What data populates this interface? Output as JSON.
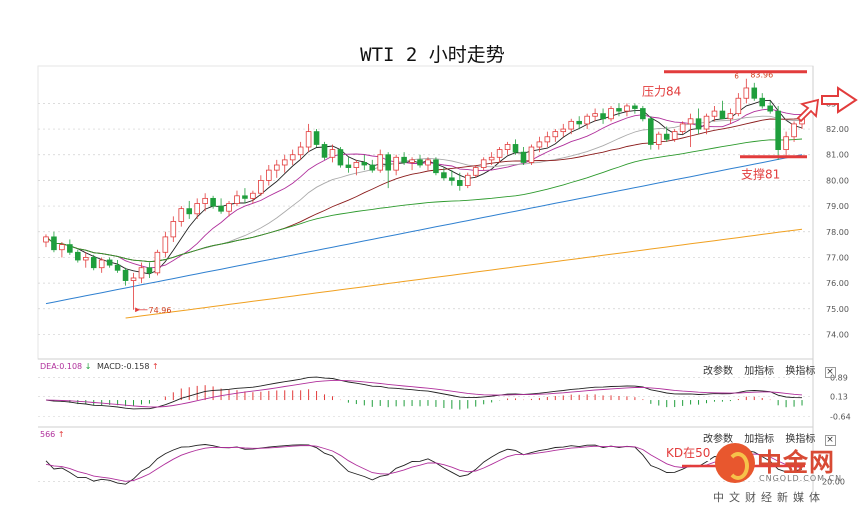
{
  "title": "WTI 2 小时走势",
  "chart_data": {
    "type": "candlestick",
    "title": "WTI 2 小时走势",
    "y_ticks": [
      "83.00",
      "82.00",
      "81.00",
      "80.00",
      "79.00",
      "78.00",
      "77.00",
      "76.00",
      "75.00",
      "74.00"
    ],
    "ylim": [
      73.2,
      84.3
    ],
    "candles": [
      [
        77.6,
        77.9,
        77.4,
        77.8
      ],
      [
        77.8,
        78.0,
        77.2,
        77.3
      ],
      [
        77.3,
        77.6,
        77.0,
        77.5
      ],
      [
        77.5,
        77.7,
        77.1,
        77.2
      ],
      [
        77.2,
        77.3,
        76.8,
        76.9
      ],
      [
        76.9,
        77.2,
        76.6,
        77.0
      ],
      [
        77.0,
        77.1,
        76.5,
        76.6
      ],
      [
        76.6,
        77.0,
        76.4,
        76.9
      ],
      [
        76.9,
        77.0,
        76.6,
        76.7
      ],
      [
        76.7,
        76.9,
        76.4,
        76.5
      ],
      [
        76.5,
        76.6,
        75.9,
        76.1
      ],
      [
        76.1,
        76.4,
        74.96,
        76.2
      ],
      [
        76.2,
        76.8,
        76.0,
        76.6
      ],
      [
        76.6,
        76.8,
        76.2,
        76.4
      ],
      [
        76.4,
        77.3,
        76.3,
        77.2
      ],
      [
        77.2,
        78.0,
        77.0,
        77.8
      ],
      [
        77.8,
        78.6,
        77.6,
        78.4
      ],
      [
        78.4,
        79.0,
        78.2,
        78.9
      ],
      [
        78.9,
        79.2,
        78.5,
        78.7
      ],
      [
        78.7,
        79.3,
        78.5,
        79.1
      ],
      [
        79.1,
        79.5,
        78.8,
        79.3
      ],
      [
        79.3,
        79.4,
        78.9,
        79.0
      ],
      [
        79.0,
        79.3,
        78.7,
        78.8
      ],
      [
        78.8,
        79.2,
        78.6,
        79.1
      ],
      [
        79.1,
        79.6,
        79.0,
        79.4
      ],
      [
        79.4,
        79.7,
        79.1,
        79.3
      ],
      [
        79.3,
        79.6,
        79.1,
        79.5
      ],
      [
        79.5,
        80.2,
        79.4,
        80.0
      ],
      [
        80.0,
        80.6,
        79.8,
        80.4
      ],
      [
        80.4,
        80.8,
        80.1,
        80.6
      ],
      [
        80.6,
        81.0,
        80.3,
        80.8
      ],
      [
        80.8,
        81.2,
        80.6,
        81.0
      ],
      [
        81.0,
        81.5,
        80.8,
        81.3
      ],
      [
        81.3,
        82.2,
        81.1,
        81.9
      ],
      [
        81.9,
        82.0,
        81.3,
        81.4
      ],
      [
        81.4,
        81.5,
        80.8,
        80.9
      ],
      [
        80.9,
        81.4,
        80.7,
        81.2
      ],
      [
        81.2,
        81.3,
        80.5,
        80.6
      ],
      [
        80.6,
        80.9,
        80.3,
        80.5
      ],
      [
        80.5,
        80.8,
        80.2,
        80.7
      ],
      [
        80.7,
        81.0,
        80.4,
        80.6
      ],
      [
        80.6,
        80.8,
        80.3,
        80.4
      ],
      [
        80.4,
        81.2,
        80.3,
        81.0
      ],
      [
        81.0,
        81.1,
        79.7,
        80.4
      ],
      [
        80.4,
        81.0,
        80.2,
        80.9
      ],
      [
        80.9,
        81.1,
        80.6,
        80.7
      ],
      [
        80.7,
        80.9,
        80.4,
        80.8
      ],
      [
        80.8,
        81.0,
        80.5,
        80.6
      ],
      [
        80.6,
        80.9,
        80.4,
        80.8
      ],
      [
        80.8,
        80.9,
        80.2,
        80.3
      ],
      [
        80.3,
        80.5,
        80.0,
        80.1
      ],
      [
        80.1,
        80.4,
        79.8,
        80.0
      ],
      [
        80.0,
        80.3,
        79.6,
        79.8
      ],
      [
        79.8,
        80.3,
        79.7,
        80.2
      ],
      [
        80.2,
        80.6,
        80.1,
        80.5
      ],
      [
        80.5,
        80.9,
        80.4,
        80.8
      ],
      [
        80.8,
        81.1,
        80.6,
        80.9
      ],
      [
        80.9,
        81.3,
        80.7,
        81.2
      ],
      [
        81.2,
        81.5,
        81.0,
        81.4
      ],
      [
        81.4,
        81.6,
        81.0,
        81.1
      ],
      [
        81.1,
        81.3,
        80.6,
        80.7
      ],
      [
        80.7,
        81.4,
        80.6,
        81.3
      ],
      [
        81.3,
        81.7,
        81.1,
        81.5
      ],
      [
        81.5,
        81.9,
        81.3,
        81.7
      ],
      [
        81.7,
        82.0,
        81.5,
        81.9
      ],
      [
        81.9,
        82.2,
        81.7,
        82.0
      ],
      [
        82.0,
        82.4,
        81.8,
        82.3
      ],
      [
        82.3,
        82.5,
        82.0,
        82.2
      ],
      [
        82.2,
        82.6,
        82.0,
        82.5
      ],
      [
        82.5,
        82.8,
        82.3,
        82.6
      ],
      [
        82.6,
        82.8,
        82.2,
        82.4
      ],
      [
        82.4,
        82.9,
        82.3,
        82.8
      ],
      [
        82.8,
        83.0,
        82.5,
        82.7
      ],
      [
        82.7,
        83.0,
        82.5,
        82.9
      ],
      [
        82.9,
        83.0,
        82.6,
        82.8
      ],
      [
        82.8,
        82.9,
        82.3,
        82.4
      ],
      [
        82.4,
        82.5,
        81.2,
        81.4
      ],
      [
        81.4,
        81.9,
        81.2,
        81.8
      ],
      [
        81.8,
        82.1,
        81.5,
        81.6
      ],
      [
        81.6,
        82.0,
        81.5,
        81.9
      ],
      [
        81.9,
        82.3,
        81.8,
        82.2
      ],
      [
        82.2,
        82.6,
        81.3,
        82.4
      ],
      [
        82.4,
        82.8,
        81.8,
        82.0
      ],
      [
        82.0,
        82.6,
        81.8,
        82.5
      ],
      [
        82.5,
        82.9,
        82.3,
        82.7
      ],
      [
        82.7,
        83.1,
        82.5,
        82.4
      ],
      [
        82.4,
        82.8,
        82.2,
        82.6
      ],
      [
        82.6,
        83.4,
        82.5,
        83.2
      ],
      [
        83.2,
        83.96,
        83.0,
        83.6
      ],
      [
        83.6,
        83.8,
        83.1,
        83.2
      ],
      [
        83.2,
        83.4,
        82.8,
        82.9
      ],
      [
        82.9,
        83.1,
        82.6,
        82.7
      ],
      [
        82.7,
        82.9,
        80.8,
        81.2
      ],
      [
        81.2,
        81.9,
        80.9,
        81.7
      ],
      [
        81.7,
        82.3,
        81.5,
        82.2
      ],
      [
        82.2,
        82.5,
        82.0,
        82.4
      ]
    ],
    "annotations": [
      {
        "text": "74.96",
        "price": 74.96
      },
      {
        "text": "83.96",
        "price": 83.96
      },
      {
        "text": "压力84",
        "price": 84.0
      },
      {
        "text": "支撑81",
        "price": 81.0
      }
    ],
    "colors": {
      "up": "#e23c3c",
      "down": "#1f9e3c",
      "level": "#e23c3c",
      "ma_long": "#2f80d0",
      "ma_longer": "#f0a020",
      "grid": "#d0d0d0"
    }
  },
  "macd_panel": {
    "dea_label": "DEA:0.108",
    "macd_label": "MACD:-0.158",
    "y_ticks": [
      "0.89",
      "0.13",
      "-0.64"
    ],
    "buttons": [
      "改参数",
      "加指标",
      "换指标"
    ],
    "close_glyph": "×"
  },
  "kd_panel": {
    "label": "566",
    "y_ticks": [
      "20.00"
    ],
    "buttons": [
      "改参数",
      "加指标",
      "换指标"
    ],
    "close_glyph": "×",
    "note": "KD在50"
  },
  "watermark": {
    "name": "中金网",
    "site": "CNGOLD.COM.CN",
    "slogan": "中文财经新媒体"
  }
}
